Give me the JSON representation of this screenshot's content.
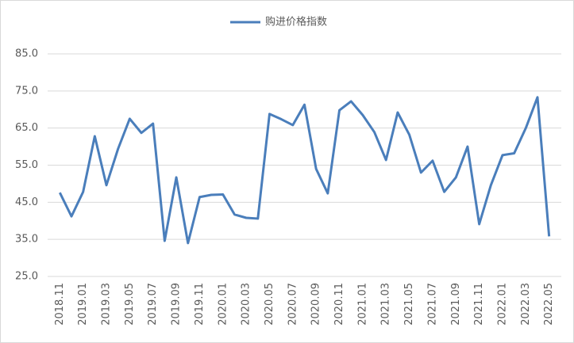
{
  "chart_data": {
    "type": "line",
    "categories": [
      "2018.11",
      null,
      "2019.01",
      null,
      "2019.03",
      null,
      "2019.05",
      null,
      "2019.07",
      null,
      "2019.09",
      null,
      "2019.11",
      null,
      "2020.01",
      null,
      "2020.03",
      null,
      "2020.05",
      null,
      "2020.07",
      null,
      "2020.09",
      null,
      "2020.11",
      null,
      "2021.01",
      null,
      "2021.03",
      null,
      "2021.05",
      null,
      "2021.07",
      null,
      "2021.09",
      null,
      "2021.11",
      null,
      "2022.01",
      null,
      "2022.03",
      null,
      "2022.05"
    ],
    "series": [
      {
        "name": "购进价格指数",
        "color": "#4a7ebb",
        "values": [
          47.6,
          41.2,
          47.8,
          62.8,
          49.6,
          59.4,
          67.5,
          63.7,
          66.2,
          34.6,
          51.7,
          34.0,
          46.4,
          47.0,
          47.1,
          41.7,
          40.8,
          40.6,
          68.8,
          67.4,
          65.8,
          71.3,
          54.0,
          47.4,
          69.8,
          72.2,
          68.5,
          63.9,
          56.4,
          69.2,
          63.2,
          53.0,
          56.2,
          47.8,
          51.7,
          60.0,
          39.1,
          49.6,
          57.7,
          58.2,
          65.0,
          73.3,
          35.8
        ]
      }
    ],
    "ylim": [
      25,
      85
    ],
    "yticks": [
      {
        "value": 25,
        "label": "25.0"
      },
      {
        "value": 35,
        "label": "35.0"
      },
      {
        "value": 45,
        "label": "45.0"
      },
      {
        "value": 55,
        "label": "55.0"
      },
      {
        "value": 65,
        "label": "65.0"
      },
      {
        "value": 75,
        "label": "75.0"
      },
      {
        "value": 85,
        "label": "85.0"
      }
    ],
    "grid": true,
    "legend": "top"
  }
}
